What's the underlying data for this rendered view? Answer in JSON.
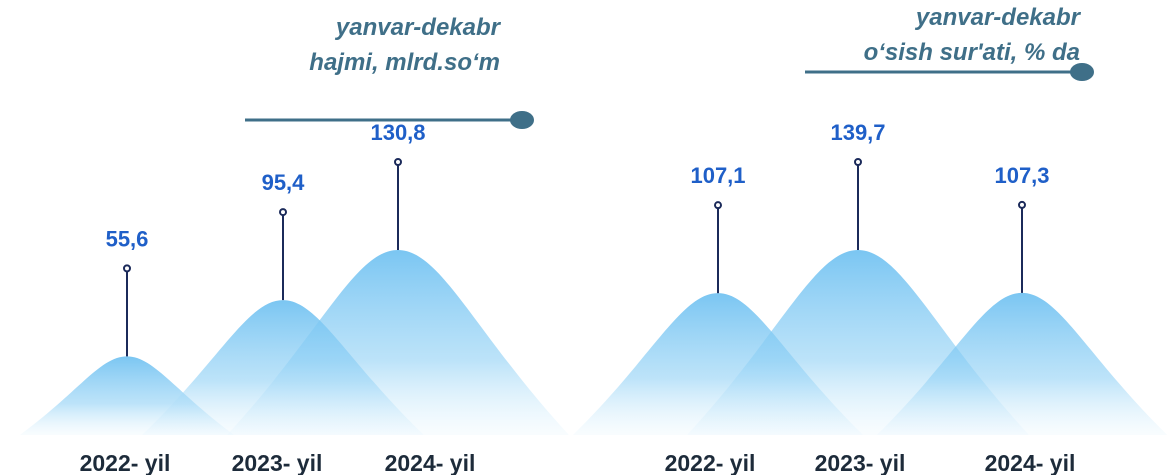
{
  "chart_data": [
    {
      "type": "mountain",
      "title": "yanvar-dekabr",
      "subtitle": "hajmi, mlrd.so‘m",
      "categories": [
        "2022- yil",
        "2023- yil",
        "2024- yil"
      ],
      "values": [
        55.6,
        95.4,
        130.8
      ],
      "value_labels": [
        "55,6",
        "95,4",
        "130,8"
      ],
      "color": "#5bb8ef"
    },
    {
      "type": "mountain",
      "title": "yanvar-dekabr",
      "subtitle": "o‘sish sur'ati, % da",
      "categories": [
        "2022- yil",
        "2023- yil",
        "2024- yil"
      ],
      "values": [
        107.1,
        139.7,
        107.3
      ],
      "value_labels": [
        "107,1",
        "139,7",
        "107,3"
      ],
      "color": "#5bb8ef"
    }
  ]
}
